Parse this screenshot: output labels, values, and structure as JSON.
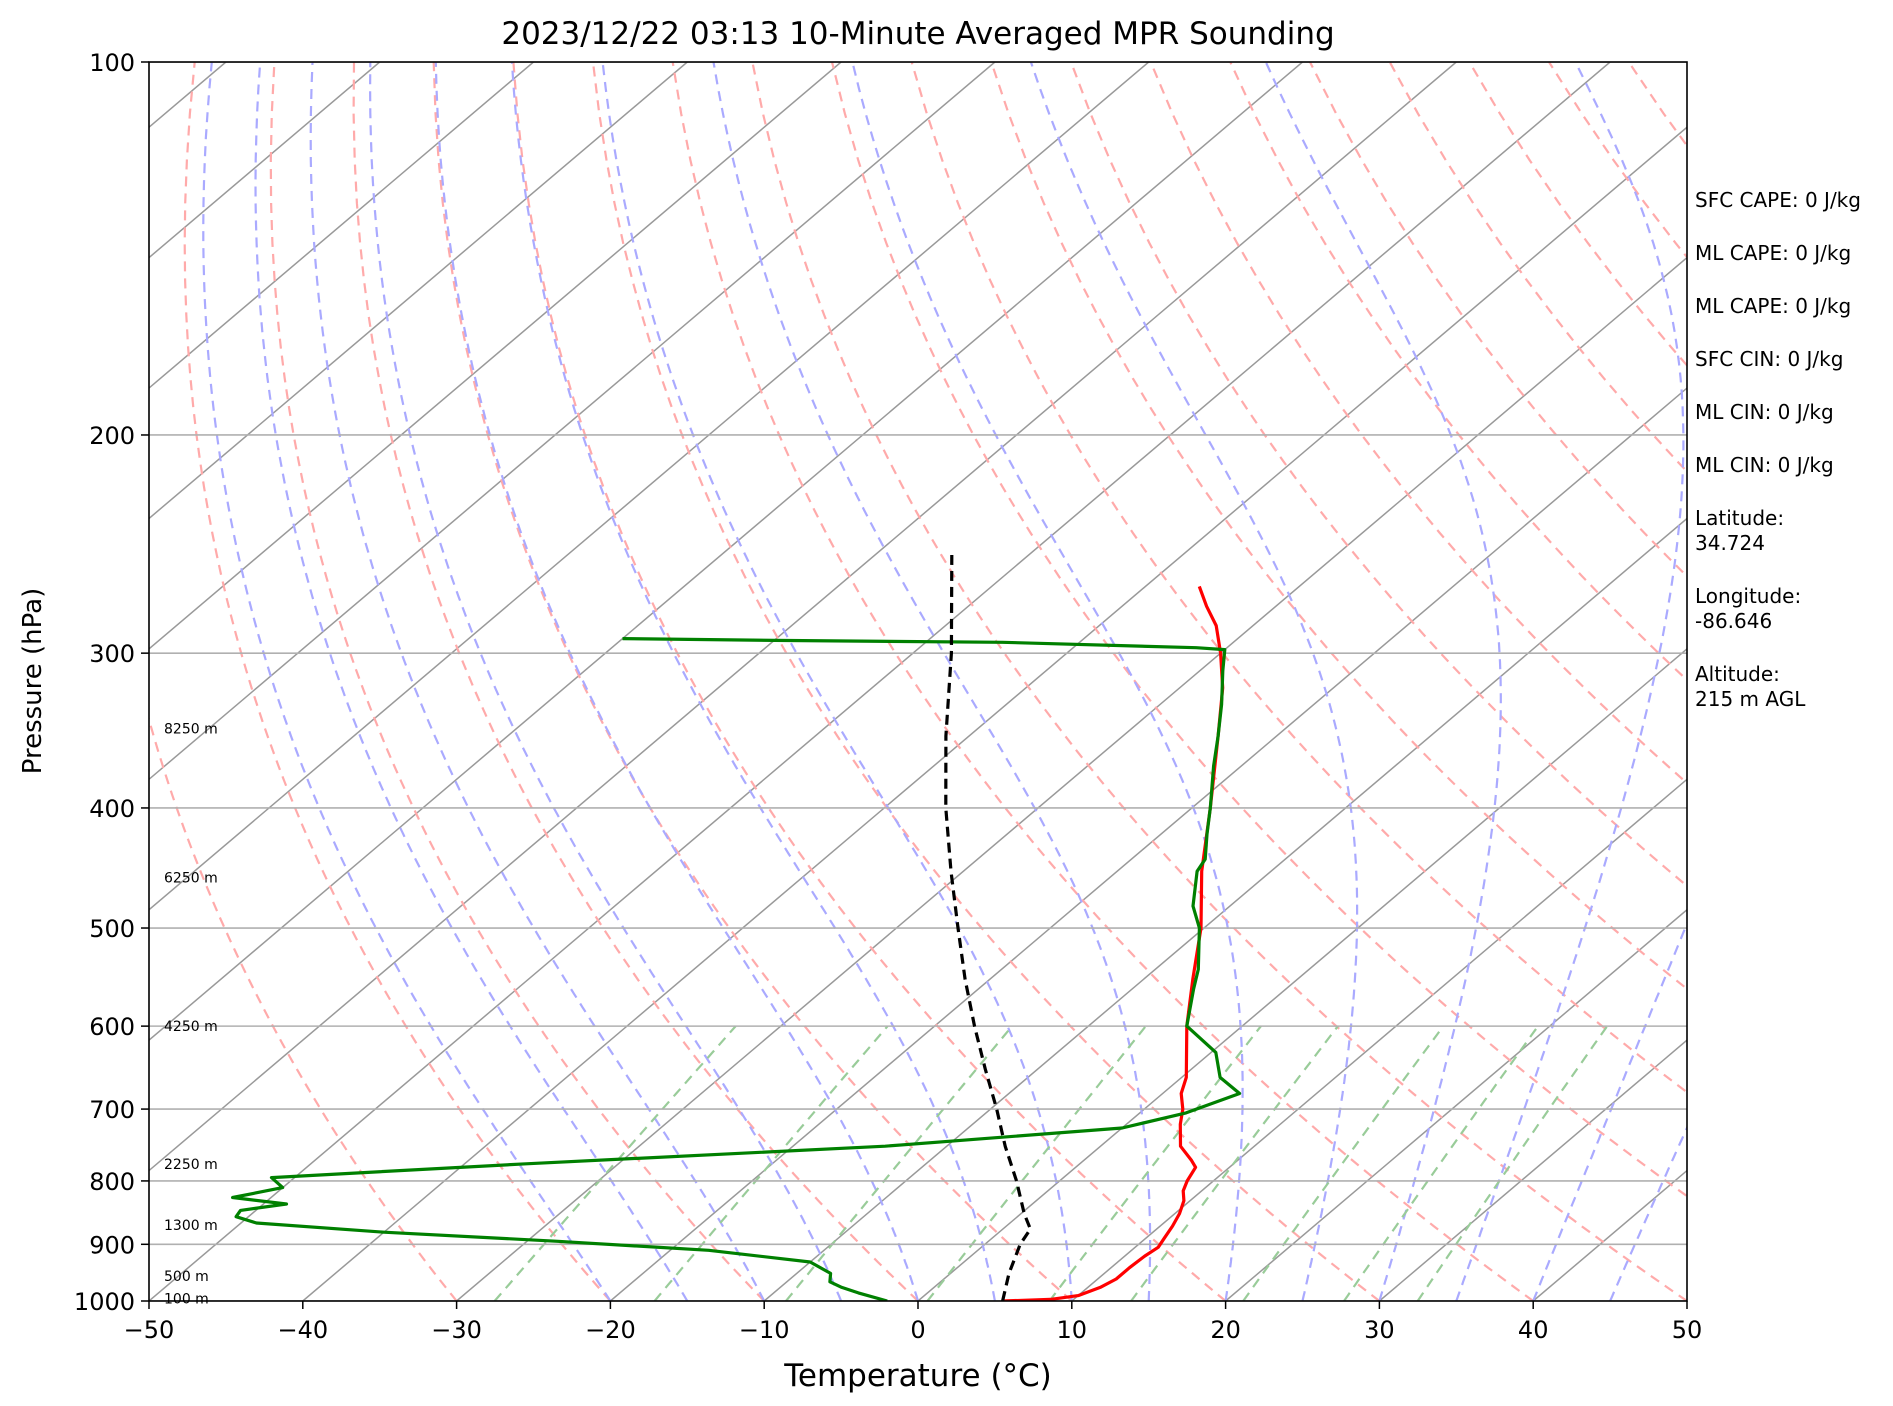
{
  "chart_data": {
    "type": "line",
    "title": "2023/12/22 03:13 10-Minute Averaged MPR Sounding",
    "xlabel": "Temperature (°C)",
    "ylabel": "Pressure (hPa)",
    "xlim": [
      -50,
      50
    ],
    "ylim": [
      1000,
      100
    ],
    "y_scale": "log",
    "skew_deg_per_decade_note": "skew-T",
    "x_ticks": [
      -50,
      -40,
      -30,
      -20,
      -10,
      0,
      10,
      20,
      30,
      40,
      50
    ],
    "x_tick_labels": [
      "−50",
      "−40",
      "−30",
      "−20",
      "−10",
      "0",
      "10",
      "20",
      "30",
      "40",
      "50"
    ],
    "y_ticks": [
      100,
      200,
      300,
      400,
      500,
      600,
      700,
      800,
      900,
      1000
    ],
    "y_tick_labels": [
      "100",
      "200",
      "300",
      "400",
      "500",
      "600",
      "700",
      "800",
      "900",
      "1000"
    ],
    "grid": true,
    "height_labels": [
      {
        "text": "8250 m",
        "p": 345
      },
      {
        "text": "6250 m",
        "p": 455
      },
      {
        "text": "4250 m",
        "p": 600
      },
      {
        "text": "2250 m",
        "p": 775
      },
      {
        "text": "1300 m",
        "p": 868
      },
      {
        "text": "500 m",
        "p": 955
      },
      {
        "text": "100 m",
        "p": 995
      }
    ],
    "series": [
      {
        "role": "temperature",
        "color": "#ff0000",
        "points": [
          [
            1000,
            5.5
          ],
          [
            997,
            8.5
          ],
          [
            990,
            10.0
          ],
          [
            975,
            10.8
          ],
          [
            960,
            11.2
          ],
          [
            940,
            11.2
          ],
          [
            920,
            11.3
          ],
          [
            905,
            11.5
          ],
          [
            890,
            11.2
          ],
          [
            870,
            10.8
          ],
          [
            850,
            10.3
          ],
          [
            830,
            9.6
          ],
          [
            815,
            8.8
          ],
          [
            800,
            8.3
          ],
          [
            780,
            7.8
          ],
          [
            770,
            7.0
          ],
          [
            750,
            5.2
          ],
          [
            720,
            3.5
          ],
          [
            700,
            2.5
          ],
          [
            680,
            1.2
          ],
          [
            660,
            0.3
          ],
          [
            600,
            -3.6
          ],
          [
            550,
            -6.8
          ],
          [
            500,
            -10.2
          ],
          [
            450,
            -14.5
          ],
          [
            400,
            -18.8
          ],
          [
            350,
            -23.8
          ],
          [
            320,
            -27.2
          ],
          [
            300,
            -30.0
          ],
          [
            285,
            -32.4
          ],
          [
            275,
            -34.5
          ],
          [
            265,
            -36.5
          ]
        ]
      },
      {
        "role": "dewpoint",
        "color": "#008000",
        "points": [
          [
            1000,
            -2.0
          ],
          [
            985,
            -4.5
          ],
          [
            975,
            -6.0
          ],
          [
            965,
            -7.2
          ],
          [
            950,
            -7.8
          ],
          [
            930,
            -10.0
          ],
          [
            910,
            -17.5
          ],
          [
            895,
            -28.0
          ],
          [
            880,
            -40.0
          ],
          [
            865,
            -49.0
          ],
          [
            855,
            -50.8
          ],
          [
            845,
            -51.0
          ],
          [
            835,
            -48.5
          ],
          [
            825,
            -52.5
          ],
          [
            810,
            -50.0
          ],
          [
            795,
            -51.5
          ],
          [
            775,
            -36.0
          ],
          [
            750,
            -14.0
          ],
          [
            725,
            0.0
          ],
          [
            705,
            3.0
          ],
          [
            680,
            5.0
          ],
          [
            660,
            2.5
          ],
          [
            630,
            0.3
          ],
          [
            600,
            -3.6
          ],
          [
            560,
            -6.0
          ],
          [
            540,
            -7.2
          ],
          [
            500,
            -10.3
          ],
          [
            480,
            -12.4
          ],
          [
            450,
            -14.8
          ],
          [
            440,
            -15.2
          ],
          [
            420,
            -17.0
          ],
          [
            400,
            -18.8
          ],
          [
            370,
            -21.8
          ],
          [
            350,
            -23.8
          ],
          [
            330,
            -26.0
          ],
          [
            310,
            -28.5
          ],
          [
            298,
            -30.0
          ],
          [
            297,
            -32.0
          ],
          [
            294,
            -45.0
          ],
          [
            293,
            -60.0
          ],
          [
            292,
            -70.0
          ]
        ]
      },
      {
        "role": "parcel",
        "color": "#000000",
        "dashed": true,
        "points": [
          [
            1000,
            5.5
          ],
          [
            950,
            3.8
          ],
          [
            900,
            2.3
          ],
          [
            875,
            1.8
          ],
          [
            850,
            0.2
          ],
          [
            800,
            -2.8
          ],
          [
            750,
            -6.2
          ],
          [
            700,
            -9.6
          ],
          [
            650,
            -13.4
          ],
          [
            600,
            -17.4
          ],
          [
            550,
            -21.6
          ],
          [
            500,
            -26.0
          ],
          [
            450,
            -30.8
          ],
          [
            400,
            -36.0
          ],
          [
            350,
            -41.5
          ],
          [
            300,
            -47.5
          ],
          [
            250,
            -55.0
          ]
        ]
      }
    ],
    "reference_lines": {
      "dry_adiabats_color": "#ffaaaa",
      "moist_adiabats_color": "#aaaaff",
      "mixing_ratio_color": "#99cc99",
      "isotherms_color": "#999999"
    }
  },
  "side_info": {
    "sfc_cape": "SFC CAPE: 0 J/kg",
    "ml_cape_1": "ML CAPE: 0 J/kg",
    "ml_cape_2": "ML CAPE: 0 J/kg",
    "sfc_cin": "SFC CIN: 0 J/kg",
    "ml_cin_1": "ML CIN: 0 J/kg",
    "ml_cin_2": "ML CIN: 0 J/kg",
    "latitude": "Latitude:\n34.724",
    "longitude": "Longitude:\n-86.646",
    "altitude": "Altitude:\n215 m AGL"
  }
}
